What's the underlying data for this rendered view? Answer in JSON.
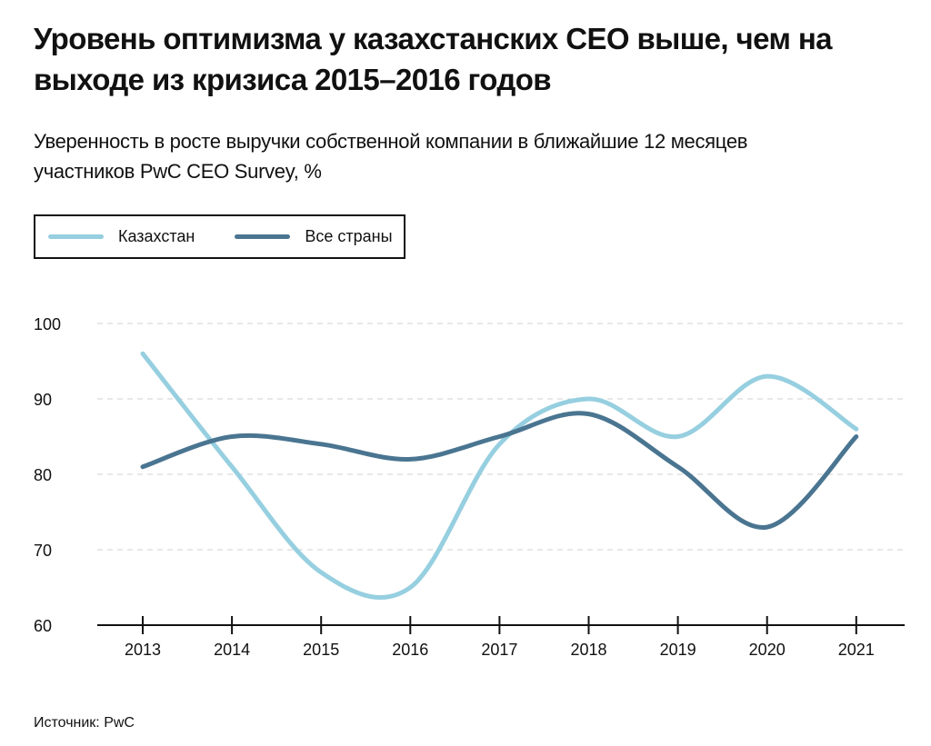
{
  "header": {
    "title": "Уровень оптимизма у казахстанских CEO выше, чем на выходе из кризиса 2015–2016 годов",
    "subtitle": "Уверенность в росте выручки собственной компании в ближайшие 12 месяцев участников PwC CEO Survey, %"
  },
  "legend": {
    "items": [
      {
        "label": "Казахстан",
        "color": "#96cfe0"
      },
      {
        "label": "Все страны",
        "color": "#4a7591"
      }
    ]
  },
  "footer": {
    "source": "Источник: PwC"
  },
  "chart_data": {
    "type": "line",
    "title": "Уровень оптимизма у казахстанских CEO выше, чем на выходе из кризиса 2015–2016 годов",
    "subtitle": "Уверенность в росте выручки собственной компании в ближайшие 12 месяцев участников PwC CEO Survey, %",
    "x": [
      "2013",
      "2014",
      "2015",
      "2016",
      "2017",
      "2018",
      "2019",
      "2020",
      "2021"
    ],
    "series": [
      {
        "name": "Казахстан",
        "color": "#96cfe0",
        "values": [
          96,
          81,
          67,
          65,
          84,
          90,
          85,
          93,
          86
        ]
      },
      {
        "name": "Все страны",
        "color": "#4a7591",
        "values": [
          81,
          85,
          84,
          82,
          85,
          88,
          81,
          73,
          85
        ]
      }
    ],
    "ylim": [
      60,
      100
    ],
    "yticks": [
      60,
      70,
      80,
      90,
      100
    ],
    "grid": true,
    "legend_position": "top-left",
    "smooth": true
  }
}
